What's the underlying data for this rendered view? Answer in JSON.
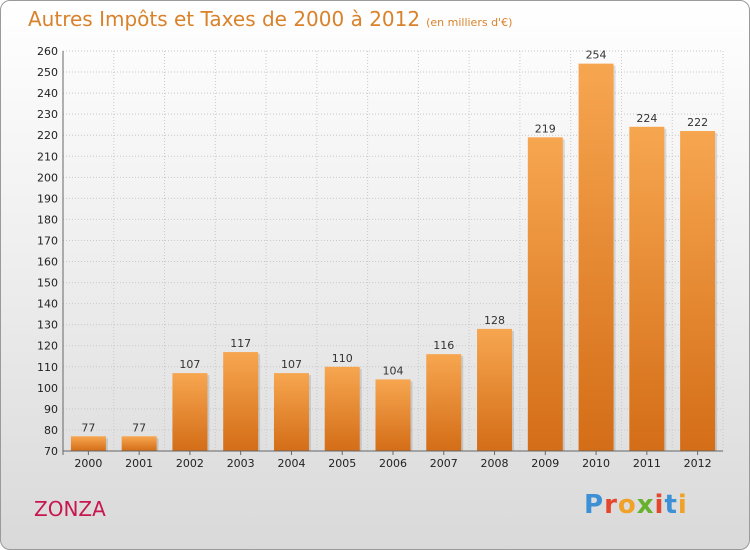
{
  "header": {
    "title": "Autres Impôts et Taxes de 2000 à 2012",
    "unit": "(en milliers d'€)"
  },
  "footer": {
    "city": "ZONZA",
    "logo_letters": [
      "P",
      "r",
      "o",
      "x",
      "i",
      "t",
      "i"
    ]
  },
  "colors": {
    "bar_top": "#f7a650",
    "bar_bottom": "#d46d17",
    "title": "#d9822b",
    "city": "#c8164f",
    "logo": [
      "#3d8fd6",
      "#e4472b",
      "#f0a128",
      "#66b22e",
      "#e4472b",
      "#3d8fd6",
      "#f0a128"
    ]
  },
  "chart_data": {
    "type": "bar",
    "categories": [
      "2000",
      "2001",
      "2002",
      "2003",
      "2004",
      "2005",
      "2006",
      "2007",
      "2008",
      "2009",
      "2010",
      "2011",
      "2012"
    ],
    "values": [
      77,
      77,
      107,
      117,
      107,
      110,
      104,
      116,
      128,
      219,
      254,
      224,
      222
    ],
    "ylim": [
      70,
      260
    ],
    "yticks": [
      70,
      80,
      90,
      100,
      110,
      120,
      130,
      140,
      150,
      160,
      170,
      180,
      190,
      200,
      210,
      220,
      230,
      240,
      250,
      260
    ],
    "grid": true
  }
}
